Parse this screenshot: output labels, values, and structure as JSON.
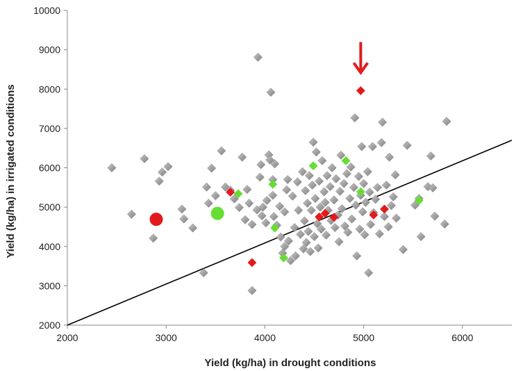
{
  "chart_data": {
    "type": "scatter",
    "title": "",
    "xlabel": "Yield (kg/ha) in drought conditions",
    "ylabel": "Yield (kg/ha) in irrigated conditions",
    "xlim": [
      2000,
      6500
    ],
    "ylim": [
      2000,
      10000
    ],
    "x_ticks": [
      2000,
      3000,
      4000,
      5000,
      6000
    ],
    "y_ticks": [
      2000,
      3000,
      4000,
      5000,
      6000,
      7000,
      8000,
      9000,
      10000
    ],
    "grid": false,
    "legend": "none",
    "colors": {
      "gray": "#9a9a9a",
      "red": "#e31a1c",
      "green": "#66dd33",
      "line": "#000000",
      "arrow": "#e31a1c"
    },
    "regression_line": {
      "x": [
        2000,
        6500
      ],
      "y": [
        2000,
        6700
      ]
    },
    "arrow_target": {
      "x": 4970,
      "y": 7960
    },
    "series": [
      {
        "color": "gray",
        "marker": "diamond",
        "points": [
          [
            2450,
            6000
          ],
          [
            2650,
            4820
          ],
          [
            2780,
            6230
          ],
          [
            2870,
            4210
          ],
          [
            2930,
            5660
          ],
          [
            2960,
            5890
          ],
          [
            3020,
            6030
          ],
          [
            3160,
            4950
          ],
          [
            3180,
            4700
          ],
          [
            3270,
            4470
          ],
          [
            3380,
            3330
          ],
          [
            3410,
            5510
          ],
          [
            3430,
            5100
          ],
          [
            3460,
            5990
          ],
          [
            3500,
            5290
          ],
          [
            3560,
            6430
          ],
          [
            3600,
            5510
          ],
          [
            3650,
            5430
          ],
          [
            3690,
            5210
          ],
          [
            3740,
            4990
          ],
          [
            3770,
            6270
          ],
          [
            3800,
            4680
          ],
          [
            3820,
            5450
          ],
          [
            3840,
            5100
          ],
          [
            3870,
            4560
          ],
          [
            3870,
            2880
          ],
          [
            3920,
            4930
          ],
          [
            3930,
            8810
          ],
          [
            3950,
            5760
          ],
          [
            3960,
            6080
          ],
          [
            3970,
            4780
          ],
          [
            3980,
            5000
          ],
          [
            4010,
            4600
          ],
          [
            4020,
            5170
          ],
          [
            4040,
            6330
          ],
          [
            4050,
            6200
          ],
          [
            4060,
            7920
          ],
          [
            4080,
            5700
          ],
          [
            4080,
            5300
          ],
          [
            4090,
            4760
          ],
          [
            4100,
            6100
          ],
          [
            4120,
            4540
          ],
          [
            4150,
            5020
          ],
          [
            4160,
            4240
          ],
          [
            4180,
            3830
          ],
          [
            4200,
            4880
          ],
          [
            4200,
            4000
          ],
          [
            4220,
            5440
          ],
          [
            4230,
            5700
          ],
          [
            4240,
            4140
          ],
          [
            4260,
            3640
          ],
          [
            4280,
            5280
          ],
          [
            4300,
            4480
          ],
          [
            4310,
            3760
          ],
          [
            4330,
            5640
          ],
          [
            4340,
            4920
          ],
          [
            4360,
            4310
          ],
          [
            4380,
            5900
          ],
          [
            4390,
            3940
          ],
          [
            4400,
            4650
          ],
          [
            4410,
            5420
          ],
          [
            4420,
            4100
          ],
          [
            4430,
            5100
          ],
          [
            4440,
            4380
          ],
          [
            4450,
            5800
          ],
          [
            4460,
            3870
          ],
          [
            4470,
            4920
          ],
          [
            4480,
            5560
          ],
          [
            4490,
            6650
          ],
          [
            4500,
            4250
          ],
          [
            4510,
            5220
          ],
          [
            4520,
            6400
          ],
          [
            4530,
            4580
          ],
          [
            4540,
            3960
          ],
          [
            4550,
            5660
          ],
          [
            4560,
            5000
          ],
          [
            4570,
            4440
          ],
          [
            4580,
            6180
          ],
          [
            4600,
            5390
          ],
          [
            4610,
            5120
          ],
          [
            4620,
            4290
          ],
          [
            4630,
            5800
          ],
          [
            4640,
            4920
          ],
          [
            4660,
            5520
          ],
          [
            4670,
            4660
          ],
          [
            4680,
            6000
          ],
          [
            4700,
            5180
          ],
          [
            4710,
            4480
          ],
          [
            4720,
            5720
          ],
          [
            4740,
            4800
          ],
          [
            4750,
            4120
          ],
          [
            4760,
            5400
          ],
          [
            4770,
            6320
          ],
          [
            4780,
            4960
          ],
          [
            4800,
            5600
          ],
          [
            4810,
            4520
          ],
          [
            4830,
            5850
          ],
          [
            4840,
            4360
          ],
          [
            4860,
            5220
          ],
          [
            4870,
            6020
          ],
          [
            4880,
            4700
          ],
          [
            4900,
            5500
          ],
          [
            4910,
            7270
          ],
          [
            4920,
            5050
          ],
          [
            4930,
            3760
          ],
          [
            4950,
            5780
          ],
          [
            4960,
            4440
          ],
          [
            4970,
            5300
          ],
          [
            4980,
            6540
          ],
          [
            4990,
            4880
          ],
          [
            5000,
            5600
          ],
          [
            5010,
            4300
          ],
          [
            5020,
            5120
          ],
          [
            5040,
            5900
          ],
          [
            5050,
            3330
          ],
          [
            5060,
            5380
          ],
          [
            5070,
            4560
          ],
          [
            5090,
            6540
          ],
          [
            5100,
            4860
          ],
          [
            5120,
            5200
          ],
          [
            5140,
            5500
          ],
          [
            5160,
            4320
          ],
          [
            5180,
            6640
          ],
          [
            5190,
            7160
          ],
          [
            5210,
            4760
          ],
          [
            5230,
            5560
          ],
          [
            5250,
            4500
          ],
          [
            5260,
            6270
          ],
          [
            5280,
            5040
          ],
          [
            5300,
            5260
          ],
          [
            5320,
            5820
          ],
          [
            5330,
            4720
          ],
          [
            5400,
            3920
          ],
          [
            5440,
            6570
          ],
          [
            5520,
            5050
          ],
          [
            5560,
            5220
          ],
          [
            5580,
            4250
          ],
          [
            5650,
            5520
          ],
          [
            5680,
            6300
          ],
          [
            5700,
            5490
          ],
          [
            5720,
            4770
          ],
          [
            5820,
            4570
          ],
          [
            5840,
            7180
          ]
        ]
      },
      {
        "color": "red",
        "marker": "diamond",
        "points": [
          [
            3650,
            5380
          ],
          [
            3870,
            3590
          ],
          [
            4550,
            4750
          ],
          [
            4610,
            4840
          ],
          [
            4700,
            4740
          ],
          [
            4970,
            7960
          ],
          [
            5100,
            4800
          ],
          [
            5210,
            4950
          ]
        ]
      },
      {
        "color": "green",
        "marker": "diamond",
        "points": [
          [
            3730,
            5340
          ],
          [
            4080,
            5580
          ],
          [
            4100,
            4470
          ],
          [
            4190,
            3710
          ],
          [
            4490,
            6050
          ],
          [
            4820,
            6180
          ],
          [
            4970,
            5390
          ],
          [
            5560,
            5170
          ]
        ]
      },
      {
        "color": "red",
        "marker": "circle",
        "points": [
          [
            2900,
            4690
          ]
        ]
      },
      {
        "color": "green",
        "marker": "circle",
        "points": [
          [
            3520,
            4840
          ]
        ]
      }
    ]
  }
}
